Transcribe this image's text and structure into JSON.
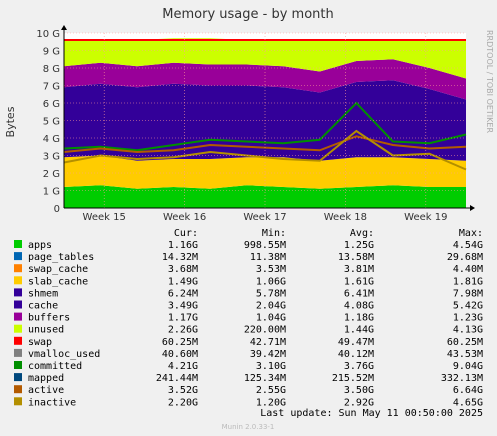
{
  "title": "Memory usage - by month",
  "side_text": "RRDTOOL / TOBI OETIKER",
  "footer_version": "Munin 2.0.33-1",
  "last_update": "Last update:  Sun May 11 00:50:00 2025",
  "legend_header": {
    "cur": "Cur:",
    "min": "Min:",
    "avg": "Avg:",
    "max": "Max:"
  },
  "legend": [
    {
      "name": "apps",
      "color": "#00cc00",
      "cur": "1.16G",
      "min": "998.55M",
      "avg": "1.25G",
      "max": "4.54G"
    },
    {
      "name": "page_tables",
      "color": "#0066b3",
      "cur": "14.32M",
      "min": "11.38M",
      "avg": "13.58M",
      "max": "29.68M"
    },
    {
      "name": "swap_cache",
      "color": "#ff8000",
      "cur": "3.68M",
      "min": "3.53M",
      "avg": "3.81M",
      "max": "4.40M"
    },
    {
      "name": "slab_cache",
      "color": "#ffcc00",
      "cur": "1.49G",
      "min": "1.06G",
      "avg": "1.61G",
      "max": "1.81G"
    },
    {
      "name": "shmem",
      "color": "#330099",
      "cur": "6.24M",
      "min": "5.78M",
      "avg": "6.41M",
      "max": "7.98M"
    },
    {
      "name": "cache",
      "color": "#330099",
      "cur": "3.49G",
      "min": "2.04G",
      "avg": "4.08G",
      "max": "5.42G"
    },
    {
      "name": "buffers",
      "color": "#990099",
      "cur": "1.17G",
      "min": "1.04G",
      "avg": "1.18G",
      "max": "1.23G"
    },
    {
      "name": "unused",
      "color": "#ccff00",
      "cur": "2.26G",
      "min": "220.00M",
      "avg": "1.44G",
      "max": "4.13G"
    },
    {
      "name": "swap",
      "color": "#ff0000",
      "cur": "60.25M",
      "min": "42.71M",
      "avg": "49.47M",
      "max": "60.25M"
    },
    {
      "name": "vmalloc_used",
      "color": "#808080",
      "cur": "40.60M",
      "min": "39.42M",
      "avg": "40.12M",
      "max": "43.53M"
    },
    {
      "name": "committed",
      "color": "#008f00",
      "cur": "4.21G",
      "min": "3.10G",
      "avg": "3.76G",
      "max": "9.04G"
    },
    {
      "name": "mapped",
      "color": "#00487d",
      "cur": "241.44M",
      "min": "125.34M",
      "avg": "215.52M",
      "max": "332.13M"
    },
    {
      "name": "active",
      "color": "#b35a00",
      "cur": "3.52G",
      "min": "2.55G",
      "avg": "3.50G",
      "max": "6.64G"
    },
    {
      "name": "inactive",
      "color": "#b38f00",
      "cur": "2.20G",
      "min": "1.20G",
      "avg": "2.92G",
      "max": "4.65G"
    }
  ],
  "chart_data": {
    "type": "area",
    "title": "Memory usage - by month",
    "ylabel": "Bytes",
    "ylim": [
      0,
      10
    ],
    "y_unit": "G",
    "y_ticks": [
      "0",
      "1 G",
      "2 G",
      "3 G",
      "4 G",
      "5 G",
      "6 G",
      "7 G",
      "8 G",
      "9 G",
      "10 G"
    ],
    "x_ticks": [
      "Week 15",
      "Week 16",
      "Week 17",
      "Week 18",
      "Week 19"
    ],
    "grid": true,
    "stacked_series": [
      {
        "name": "apps",
        "color": "#00cc00",
        "values": [
          1.2,
          1.3,
          1.1,
          1.2,
          1.1,
          1.3,
          1.2,
          1.1,
          1.2,
          1.3,
          1.2,
          1.2
        ]
      },
      {
        "name": "slab_cache",
        "color": "#ffcc00",
        "values": [
          1.7,
          1.7,
          1.6,
          1.6,
          1.7,
          1.6,
          1.7,
          1.6,
          1.7,
          1.6,
          1.6,
          1.5
        ]
      },
      {
        "name": "cache",
        "color": "#330099",
        "values": [
          4.0,
          4.1,
          4.2,
          4.3,
          4.2,
          4.1,
          4.0,
          3.9,
          4.3,
          4.4,
          4.0,
          3.5
        ]
      },
      {
        "name": "buffers",
        "color": "#990099",
        "values": [
          1.2,
          1.2,
          1.2,
          1.2,
          1.2,
          1.2,
          1.2,
          1.2,
          1.2,
          1.2,
          1.2,
          1.2
        ]
      },
      {
        "name": "unused",
        "color": "#ccff00",
        "values": [
          1.5,
          1.3,
          1.5,
          1.4,
          1.5,
          1.4,
          1.5,
          1.8,
          1.2,
          1.1,
          1.6,
          2.2
        ]
      }
    ],
    "line_series": [
      {
        "name": "swap",
        "color": "#ff0000",
        "values": [
          9.6,
          9.6,
          9.6,
          9.6,
          9.6,
          9.6,
          9.6,
          9.6,
          9.6,
          9.6,
          9.6,
          9.6
        ]
      },
      {
        "name": "committed",
        "color": "#008f00",
        "values": [
          3.4,
          3.5,
          3.3,
          3.6,
          3.9,
          3.8,
          3.7,
          3.9,
          6.0,
          3.8,
          3.7,
          4.2
        ]
      },
      {
        "name": "active",
        "color": "#b35a00",
        "values": [
          3.2,
          3.4,
          3.2,
          3.3,
          3.6,
          3.5,
          3.4,
          3.3,
          4.1,
          3.6,
          3.4,
          3.5
        ]
      },
      {
        "name": "inactive",
        "color": "#b38f00",
        "values": [
          2.6,
          3.0,
          2.8,
          2.9,
          3.2,
          3.0,
          2.8,
          2.7,
          4.4,
          3.0,
          3.1,
          2.2
        ]
      }
    ]
  }
}
